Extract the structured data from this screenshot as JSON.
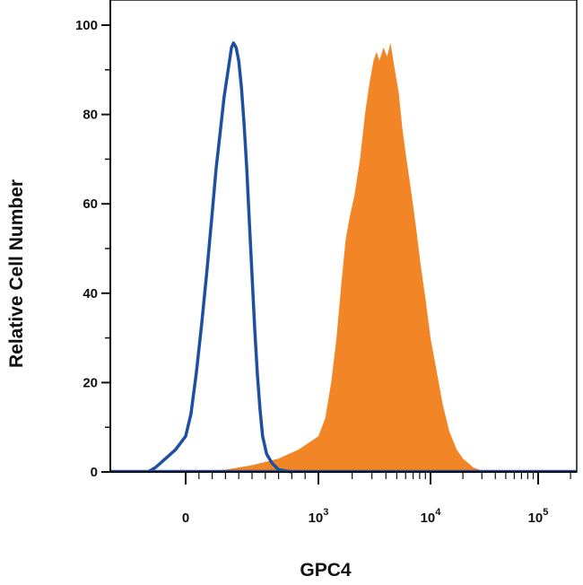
{
  "chart_data": {
    "type": "area",
    "title": "",
    "xlabel": "GPC4",
    "ylabel": "Relative Cell Number",
    "x_scale": "biexponential (log-like above 10^3)",
    "ylim": [
      0,
      100
    ],
    "y_ticks": [
      0,
      20,
      40,
      60,
      80,
      100
    ],
    "x_ticks": [
      {
        "label": "0",
        "value": 0
      },
      {
        "label": "10",
        "exp": "3",
        "value": 1000
      },
      {
        "label": "10",
        "exp": "4",
        "value": 10000
      },
      {
        "label": "10",
        "exp": "5",
        "value": 100000
      }
    ],
    "grid": false,
    "legend": "none",
    "series": [
      {
        "style": "outline",
        "color": "#1f4fa0",
        "points": [
          [
            -150,
            0
          ],
          [
            -120,
            1
          ],
          [
            -80,
            3
          ],
          [
            -40,
            5
          ],
          [
            0,
            8
          ],
          [
            40,
            13
          ],
          [
            80,
            22
          ],
          [
            120,
            33
          ],
          [
            160,
            45
          ],
          [
            200,
            58
          ],
          [
            230,
            68
          ],
          [
            260,
            76
          ],
          [
            290,
            84
          ],
          [
            320,
            90
          ],
          [
            345,
            95
          ],
          [
            360,
            96
          ],
          [
            380,
            95
          ],
          [
            400,
            92
          ],
          [
            420,
            86
          ],
          [
            440,
            78
          ],
          [
            460,
            68
          ],
          [
            480,
            56
          ],
          [
            500,
            44
          ],
          [
            520,
            32
          ],
          [
            540,
            22
          ],
          [
            560,
            14
          ],
          [
            580,
            8
          ],
          [
            610,
            4
          ],
          [
            650,
            2
          ],
          [
            700,
            0.5
          ],
          [
            800,
            0
          ]
        ]
      },
      {
        "style": "filled",
        "color": "#f28525",
        "points": [
          [
            0,
            0
          ],
          [
            300,
            0.5
          ],
          [
            500,
            1.5
          ],
          [
            700,
            3
          ],
          [
            850,
            5
          ],
          [
            1000,
            8
          ],
          [
            1150,
            12
          ],
          [
            1300,
            20
          ],
          [
            1450,
            30
          ],
          [
            1600,
            42
          ],
          [
            1750,
            52
          ],
          [
            1900,
            57
          ],
          [
            2100,
            62
          ],
          [
            2350,
            70
          ],
          [
            2600,
            80
          ],
          [
            2850,
            87
          ],
          [
            3100,
            92
          ],
          [
            3300,
            94
          ],
          [
            3500,
            92
          ],
          [
            3800,
            95
          ],
          [
            4100,
            93
          ],
          [
            4400,
            96
          ],
          [
            4800,
            90
          ],
          [
            5200,
            85
          ],
          [
            5600,
            77
          ],
          [
            6100,
            70
          ],
          [
            6700,
            63
          ],
          [
            7400,
            55
          ],
          [
            8200,
            46
          ],
          [
            9100,
            38
          ],
          [
            10000,
            30
          ],
          [
            11500,
            22
          ],
          [
            13000,
            15
          ],
          [
            15000,
            9
          ],
          [
            17500,
            5
          ],
          [
            20000,
            3
          ],
          [
            25000,
            1
          ],
          [
            32000,
            0
          ]
        ]
      }
    ]
  }
}
